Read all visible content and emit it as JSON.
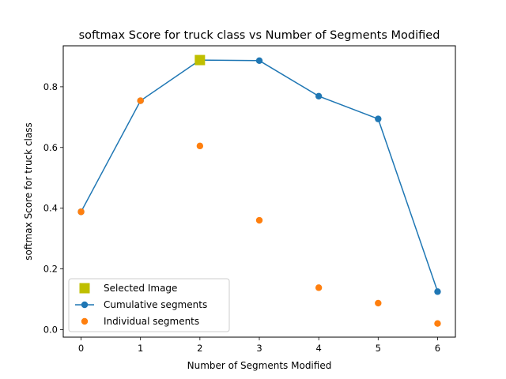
{
  "chart_data": {
    "type": "line",
    "title": "softmax Score for truck class vs Number of Segments Modified",
    "xlabel": "Number of Segments Modified",
    "ylabel": "softmax Score for truck class",
    "xlim": [
      -0.3,
      6.3
    ],
    "ylim": [
      -0.025,
      0.935
    ],
    "xticks": [
      0,
      1,
      2,
      3,
      4,
      5,
      6
    ],
    "yticks": [
      0.0,
      0.2,
      0.4,
      0.6,
      0.8
    ],
    "ytick_labels": [
      "0.0",
      "0.2",
      "0.4",
      "0.6",
      "0.8"
    ],
    "grid": false,
    "legend_position": "lower-left",
    "series": [
      {
        "name": "Selected Image",
        "style": "marker",
        "marker": "square",
        "color": "#bfbf00",
        "x": [
          2
        ],
        "y": [
          0.888
        ]
      },
      {
        "name": "Cumulative segments",
        "style": "line-marker",
        "marker": "circle",
        "color": "#1f77b4",
        "x": [
          0,
          1,
          2,
          3,
          4,
          5,
          6
        ],
        "y": [
          0.388,
          0.754,
          0.888,
          0.886,
          0.769,
          0.694,
          0.125
        ]
      },
      {
        "name": "Individual segments",
        "style": "marker",
        "marker": "circle",
        "color": "#ff7f0e",
        "x": [
          0,
          1,
          2,
          3,
          4,
          5,
          6
        ],
        "y": [
          0.388,
          0.754,
          0.605,
          0.36,
          0.138,
          0.087,
          0.02
        ]
      }
    ]
  }
}
